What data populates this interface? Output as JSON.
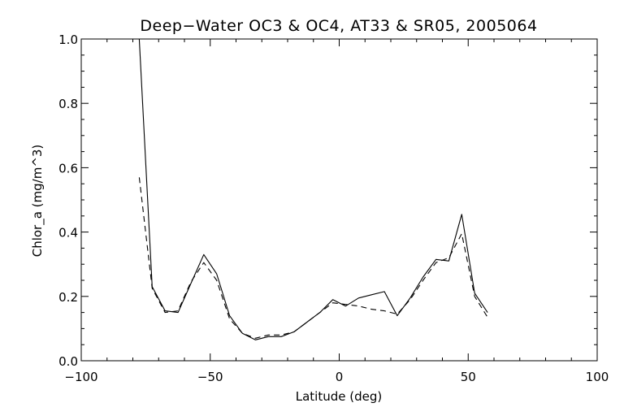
{
  "chart_data": {
    "type": "line",
    "title": "Deep−Water OC3 & OC4, AT33 & SR05, 2005064",
    "xlabel": "Latitude (deg)",
    "ylabel": "Chlor_a (mg/m^3)",
    "xlim": [
      -100,
      100
    ],
    "ylim": [
      0.0,
      1.0
    ],
    "xticks": [
      -100,
      -50,
      0,
      50,
      100
    ],
    "xtick_labels": [
      "−100",
      "−50",
      "0",
      "50",
      "100"
    ],
    "yticks": [
      0.0,
      0.2,
      0.4,
      0.6,
      0.8,
      1.0
    ],
    "ytick_labels": [
      "0.0",
      "0.2",
      "0.4",
      "0.6",
      "0.8",
      "1.0"
    ],
    "grid": false,
    "series": [
      {
        "line_style": "solid",
        "color": "#000000",
        "x": [
          -77.5,
          -72.5,
          -67.5,
          -62.5,
          -57.5,
          -52.5,
          -47.5,
          -42.5,
          -37.5,
          -32.5,
          -27.5,
          -22.5,
          -17.5,
          -12.5,
          -7.5,
          -2.5,
          2.5,
          7.5,
          12.5,
          17.5,
          22.5,
          27.5,
          32.5,
          37.5,
          42.5,
          47.5,
          52.5,
          57.5
        ],
        "y": [
          1.0,
          0.23,
          0.155,
          0.15,
          0.24,
          0.33,
          0.27,
          0.14,
          0.085,
          0.065,
          0.075,
          0.075,
          0.09,
          0.12,
          0.15,
          0.19,
          0.17,
          0.195,
          0.205,
          0.215,
          0.14,
          0.195,
          0.26,
          0.315,
          0.31,
          0.455,
          0.21,
          0.15
        ]
      },
      {
        "line_style": "dashed",
        "color": "#000000",
        "x": [
          -77.5,
          -72.5,
          -67.5,
          -62.5,
          -57.5,
          -52.5,
          -47.5,
          -42.5,
          -37.5,
          -32.5,
          -27.5,
          -22.5,
          -17.5,
          -12.5,
          -7.5,
          -2.5,
          2.5,
          7.5,
          12.5,
          17.5,
          22.5,
          27.5,
          32.5,
          37.5,
          42.5,
          47.5,
          52.5,
          57.5
        ],
        "y": [
          0.57,
          0.225,
          0.15,
          0.155,
          0.245,
          0.305,
          0.25,
          0.13,
          0.085,
          0.07,
          0.08,
          0.08,
          0.09,
          0.12,
          0.15,
          0.18,
          0.175,
          0.17,
          0.16,
          0.155,
          0.145,
          0.19,
          0.25,
          0.305,
          0.32,
          0.395,
          0.2,
          0.135
        ]
      }
    ]
  }
}
